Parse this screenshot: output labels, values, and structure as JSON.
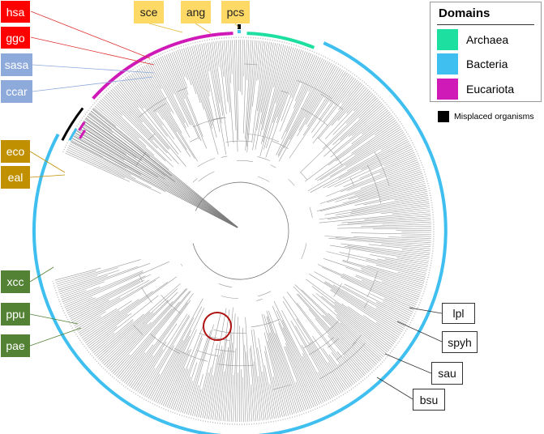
{
  "legend": {
    "title": "Domains",
    "items": [
      {
        "label": "Archaea",
        "color": "#1ddfa0"
      },
      {
        "label": "Bacteria",
        "color": "#3fbff0"
      },
      {
        "label": "Eucariota",
        "color": "#d01ab8"
      }
    ],
    "misplaced": {
      "label": "Misplaced organisms",
      "color": "#000000"
    }
  },
  "labels": [
    {
      "id": "hsa",
      "text": "hsa"
    },
    {
      "id": "ggo",
      "text": "ggo"
    },
    {
      "id": "sasa",
      "text": "sasa"
    },
    {
      "id": "ccar",
      "text": "ccar"
    },
    {
      "id": "eco",
      "text": "eco"
    },
    {
      "id": "eal",
      "text": "eal"
    },
    {
      "id": "xcc",
      "text": "xcc"
    },
    {
      "id": "ppu",
      "text": "ppu"
    },
    {
      "id": "pae",
      "text": "pae"
    },
    {
      "id": "sce",
      "text": "sce"
    },
    {
      "id": "ang",
      "text": "ang"
    },
    {
      "id": "pcs",
      "text": "pcs"
    },
    {
      "id": "lpl",
      "text": "lpl"
    },
    {
      "id": "spyh",
      "text": "spyh"
    },
    {
      "id": "sau",
      "text": "sau"
    },
    {
      "id": "bsu",
      "text": "bsu"
    }
  ],
  "colors": {
    "archaea": "#1ddfa0",
    "bacteria": "#3fbff0",
    "eucariota": "#d01ab8",
    "highlight_circle": "#b01010"
  }
}
